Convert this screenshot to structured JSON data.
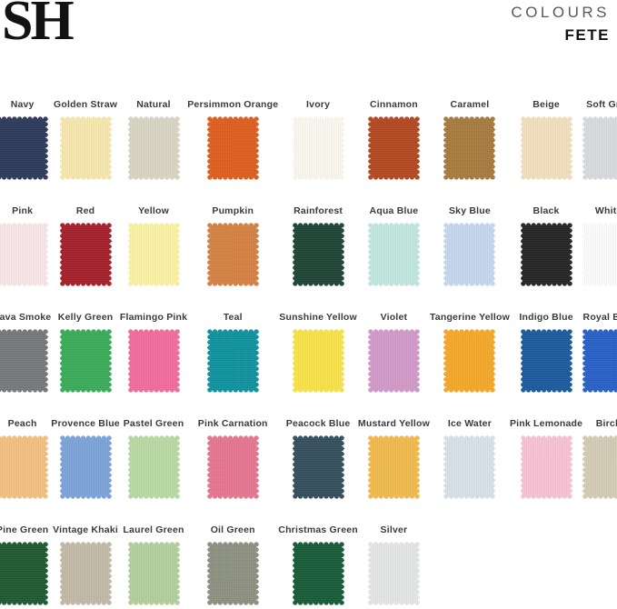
{
  "header": {
    "logo": "SH",
    "collection_label": "COLOURS",
    "collection_name": "FETE"
  },
  "swatches": [
    {
      "label": "Navy",
      "color": "#2d3a5c"
    },
    {
      "label": "Golden Straw",
      "color": "#f8e7ae"
    },
    {
      "label": "Natural",
      "color": "#d9d5c5"
    },
    {
      "label": "Persimmon Orange",
      "color": "#df5f1f"
    },
    {
      "label": "Ivory",
      "color": "#faf8ee"
    },
    {
      "label": "Cinnamon",
      "color": "#b04a25"
    },
    {
      "label": "Caramel",
      "color": "#a87b3f"
    },
    {
      "label": "Beige",
      "color": "#f2dfc0"
    },
    {
      "label": "Soft Grey",
      "color": "#d8dbde"
    },
    {
      "label": "Pink",
      "color": "#f9e5e8"
    },
    {
      "label": "Red",
      "color": "#a91e29"
    },
    {
      "label": "Yellow",
      "color": "#fbf2a2"
    },
    {
      "label": "Pumpkin",
      "color": "#d8813f"
    },
    {
      "label": "Rainforest",
      "color": "#1f4636"
    },
    {
      "label": "Aqua Blue",
      "color": "#c0e7de"
    },
    {
      "label": "Sky Blue",
      "color": "#c5d8ef"
    },
    {
      "label": "Black",
      "color": "#252526"
    },
    {
      "label": "White",
      "color": "#fcfcfc"
    },
    {
      "label": "Lava Smoke",
      "color": "#75797c"
    },
    {
      "label": "Kelly Green",
      "color": "#3aab58"
    },
    {
      "label": "Flamingo Pink",
      "color": "#ee6e9c"
    },
    {
      "label": "Teal",
      "color": "#10939f"
    },
    {
      "label": "Sunshine Yellow",
      "color": "#f8e34a"
    },
    {
      "label": "Violet",
      "color": "#d09bc8"
    },
    {
      "label": "Tangerine Yellow",
      "color": "#f6a82b"
    },
    {
      "label": "Indigo Blue",
      "color": "#1e5a99"
    },
    {
      "label": "Royal Blue",
      "color": "#2b60c3"
    },
    {
      "label": "Peach",
      "color": "#f6bf7d"
    },
    {
      "label": "Provence Blue",
      "color": "#7ba4dc"
    },
    {
      "label": "Pastel Green",
      "color": "#b8daa2"
    },
    {
      "label": "Pink Carnation",
      "color": "#ea7590"
    },
    {
      "label": "Peacock Blue",
      "color": "#344f5e"
    },
    {
      "label": "Mustard Yellow",
      "color": "#f2ba4d"
    },
    {
      "label": "Ice Water",
      "color": "#d5e3e9"
    },
    {
      "label": "Pink Lemonade",
      "color": "#f8c3d4"
    },
    {
      "label": "Birch",
      "color": "#d4ccb5"
    },
    {
      "label": "Pine Green",
      "color": "#1e5a31"
    },
    {
      "label": "Vintage Khaki",
      "color": "#c4b9a9"
    },
    {
      "label": "Laurel Green",
      "color": "#b4cf9e"
    },
    {
      "label": "Oil Green",
      "color": "#8e9181"
    },
    {
      "label": "Christmas Green",
      "color": "#175c38"
    },
    {
      "label": "Silver",
      "color": "#e4e6e6"
    }
  ]
}
